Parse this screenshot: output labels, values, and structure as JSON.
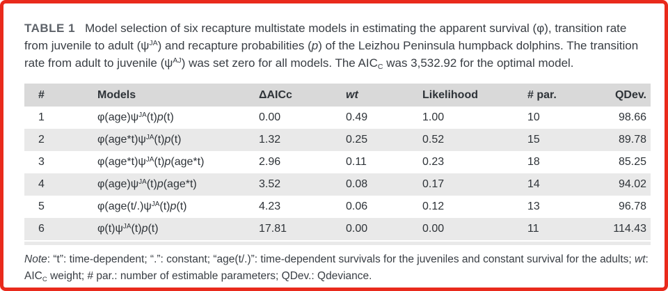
{
  "colors": {
    "border_red": "#e92a1c",
    "header_bg": "#d9d9d9",
    "stripe_bg": "#e9e9e9",
    "caption_label_gray": "#5d6269",
    "text_dark": "#383d43"
  },
  "caption": {
    "label": "TABLE 1",
    "segments": [
      [
        "Model selection of six recapture multistate models in estimating the apparent survival (φ), transition rate from juvenile to adult (ψ",
        ""
      ],
      [
        "JA",
        "sup"
      ],
      [
        ") and recapture probabilities (",
        ""
      ],
      [
        "p",
        "i"
      ],
      [
        ") of the Leizhou Peninsula humpback dolphins. The transition rate from adult to juvenile (ψ",
        ""
      ],
      [
        "AJ",
        "sup"
      ],
      [
        ") was set zero for all models. The AIC",
        ""
      ],
      [
        "C",
        "sub"
      ],
      [
        " was 3,532.92 for the optimal model.",
        ""
      ]
    ]
  },
  "table": {
    "headers": [
      {
        "label": "#",
        "italic": false,
        "align": "left"
      },
      {
        "label": "Models",
        "italic": false,
        "align": "left"
      },
      {
        "label": "ΔAICc",
        "italic": false,
        "align": "left"
      },
      {
        "label": "wt",
        "italic": true,
        "align": "left"
      },
      {
        "label": "Likelihood",
        "italic": false,
        "align": "left"
      },
      {
        "label": "# par.",
        "italic": false,
        "align": "left"
      },
      {
        "label": "QDev.",
        "italic": false,
        "align": "right"
      }
    ],
    "rows": [
      {
        "num": "1",
        "model": [
          [
            "φ(age)ψ",
            ""
          ],
          [
            "JA",
            "sup"
          ],
          [
            "(t)",
            ""
          ],
          [
            "p",
            "i"
          ],
          [
            "(t)",
            ""
          ]
        ],
        "delta_aicc": "0.00",
        "wt": "0.49",
        "likelihood": "1.00",
        "n_par": "10",
        "qdev": "98.66"
      },
      {
        "num": "2",
        "model": [
          [
            "φ(age*t)ψ",
            ""
          ],
          [
            "JA",
            "sup"
          ],
          [
            "(t)",
            ""
          ],
          [
            "p",
            "i"
          ],
          [
            "(t)",
            ""
          ]
        ],
        "delta_aicc": "1.32",
        "wt": "0.25",
        "likelihood": "0.52",
        "n_par": "15",
        "qdev": "89.78"
      },
      {
        "num": "3",
        "model": [
          [
            "φ(age*t)ψ",
            ""
          ],
          [
            "JA",
            "sup"
          ],
          [
            "(t)",
            ""
          ],
          [
            "p",
            "i"
          ],
          [
            "(age*t)",
            ""
          ]
        ],
        "delta_aicc": "2.96",
        "wt": "0.11",
        "likelihood": "0.23",
        "n_par": "18",
        "qdev": "85.25"
      },
      {
        "num": "4",
        "model": [
          [
            "φ(age)ψ",
            ""
          ],
          [
            "JA",
            "sup"
          ],
          [
            "(t)",
            ""
          ],
          [
            "p",
            "i"
          ],
          [
            "(age*t)",
            ""
          ]
        ],
        "delta_aicc": "3.52",
        "wt": "0.08",
        "likelihood": "0.17",
        "n_par": "14",
        "qdev": "94.02"
      },
      {
        "num": "5",
        "model": [
          [
            "φ(age(t/.)ψ",
            ""
          ],
          [
            "JA",
            "sup"
          ],
          [
            "(t)",
            ""
          ],
          [
            "p",
            "i"
          ],
          [
            "(t)",
            ""
          ]
        ],
        "delta_aicc": "4.23",
        "wt": "0.06",
        "likelihood": "0.12",
        "n_par": "13",
        "qdev": "96.78"
      },
      {
        "num": "6",
        "model": [
          [
            "φ(t)ψ",
            ""
          ],
          [
            "JA",
            "sup"
          ],
          [
            "(t)",
            ""
          ],
          [
            "p",
            "i"
          ],
          [
            "(t)",
            ""
          ]
        ],
        "delta_aicc": "17.81",
        "wt": "0.00",
        "likelihood": "0.00",
        "n_par": "11",
        "qdev": "114.43"
      }
    ]
  },
  "note": {
    "segments": [
      [
        "Note",
        "i"
      ],
      [
        ": “t”: time-dependent; “.”: constant; “age(t/.)”: time-dependent survivals for the juveniles and constant survival for the adults; ",
        ""
      ],
      [
        "wt",
        "i"
      ],
      [
        ": AIC",
        ""
      ],
      [
        "C",
        "sub"
      ],
      [
        " weight; # par.: number of estimable parameters; QDev.: Qdeviance.",
        ""
      ]
    ]
  }
}
